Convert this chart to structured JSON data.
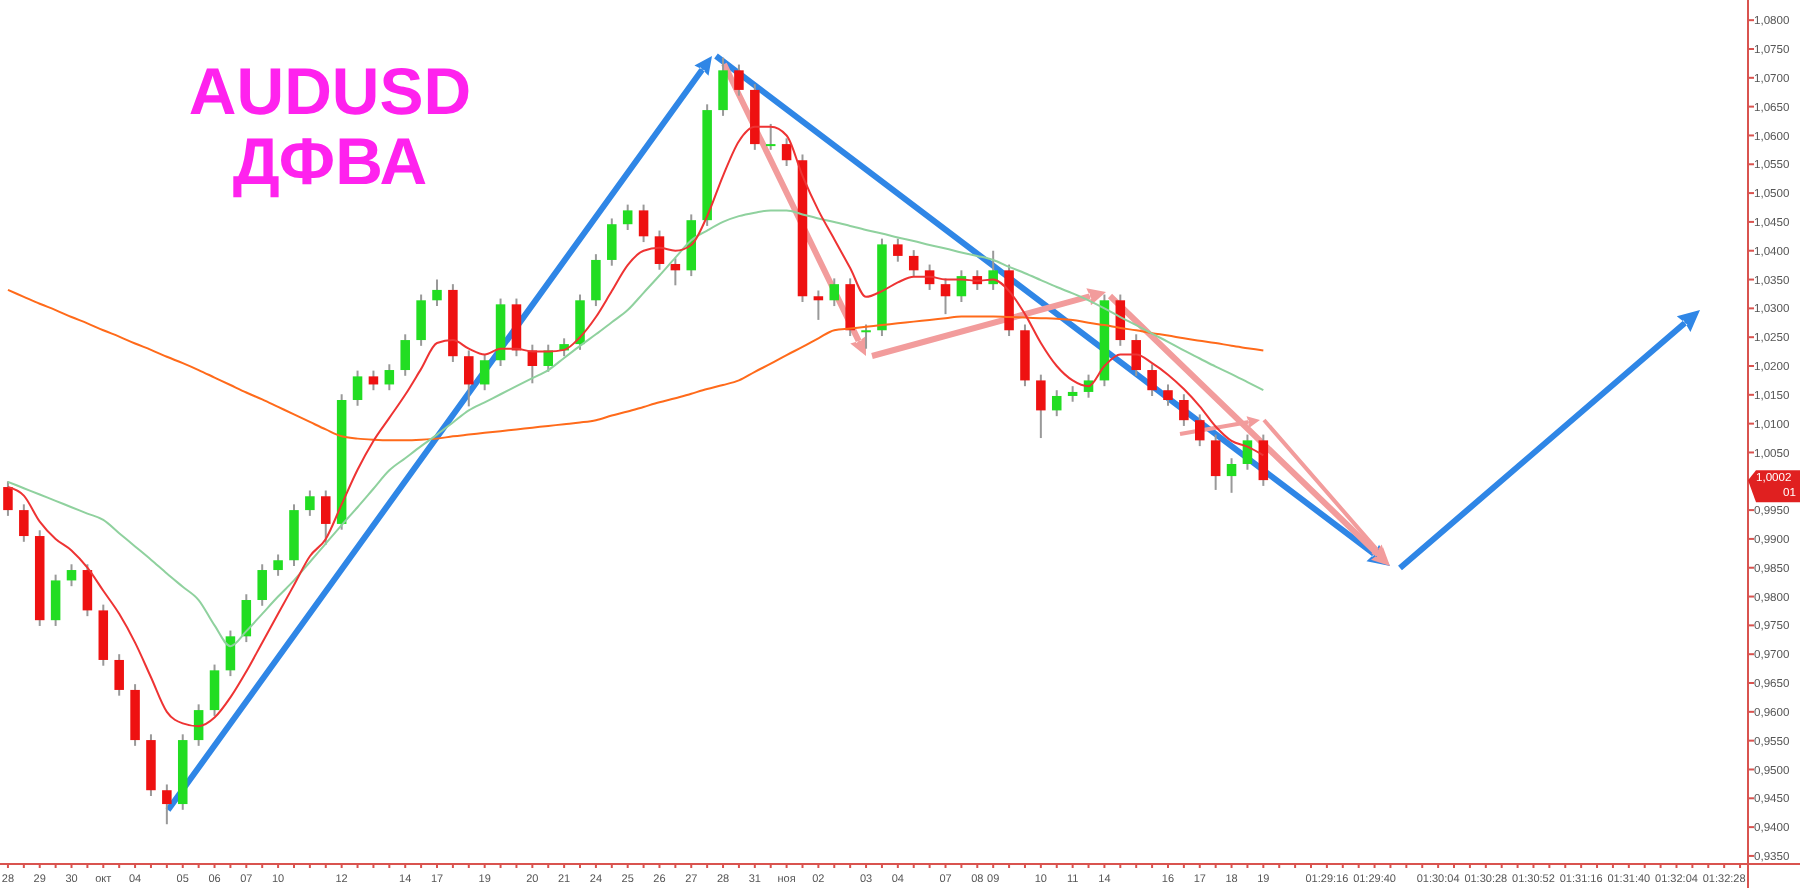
{
  "chart_data": {
    "type": "candlestick",
    "title": "AUDUSD",
    "subtitle": "ДФВА",
    "categories": [
      "28",
      null,
      "29",
      null,
      "30",
      null,
      "окт",
      null,
      "04",
      null,
      null,
      "05",
      null,
      "06",
      null,
      "07",
      null,
      "10",
      null,
      null,
      null,
      "12",
      null,
      null,
      null,
      "14",
      null,
      "17",
      null,
      null,
      "19",
      null,
      null,
      "20",
      null,
      "21",
      null,
      "24",
      null,
      "25",
      null,
      "26",
      null,
      "27",
      null,
      "28",
      null,
      "31",
      null,
      "ноя",
      null,
      "02",
      null,
      null,
      "03",
      null,
      "04",
      null,
      null,
      "07",
      null,
      "08",
      "09",
      null,
      null,
      "10",
      null,
      "11",
      null,
      "14",
      null,
      null,
      null,
      "16",
      null,
      "17",
      null,
      "18",
      null,
      "19",
      null,
      null,
      null,
      "01:29:16",
      null,
      null,
      "01:29:40",
      null,
      null,
      null,
      "01:30:04",
      null,
      null,
      "01:30:28",
      null,
      null,
      "01:30:52",
      null,
      null,
      "01:31:16",
      null,
      null,
      "01:31:40",
      null,
      null,
      "01:32:04",
      null,
      null,
      "01:32:28",
      null
    ],
    "ohlc": [
      [
        0.999,
        1.0,
        0.994,
        0.995
      ],
      [
        0.995,
        0.996,
        0.9895,
        0.9905
      ],
      [
        0.9905,
        0.9915,
        0.9749,
        0.9759
      ],
      [
        0.9759,
        0.9838,
        0.9749,
        0.9828
      ],
      [
        0.9828,
        0.9856,
        0.9818,
        0.9846
      ],
      [
        0.9846,
        0.9856,
        0.9766,
        0.9776
      ],
      [
        0.9776,
        0.9786,
        0.968,
        0.969
      ],
      [
        0.969,
        0.97,
        0.9628,
        0.9638
      ],
      [
        0.9638,
        0.9648,
        0.9541,
        0.9551
      ],
      [
        0.9551,
        0.9561,
        0.9454,
        0.9464
      ],
      [
        0.9464,
        0.9474,
        0.9405,
        0.944
      ],
      [
        0.944,
        0.9561,
        0.943,
        0.9551
      ],
      [
        0.9551,
        0.9613,
        0.9541,
        0.9603
      ],
      [
        0.9603,
        0.9682,
        0.9593,
        0.9672
      ],
      [
        0.9672,
        0.9741,
        0.9662,
        0.9731
      ],
      [
        0.9731,
        0.9804,
        0.9721,
        0.9794
      ],
      [
        0.9794,
        0.9856,
        0.9784,
        0.9846
      ],
      [
        0.9846,
        0.9873,
        0.9836,
        0.9863
      ],
      [
        0.9863,
        0.996,
        0.9853,
        0.995
      ],
      [
        0.995,
        0.9984,
        0.994,
        0.9974
      ],
      [
        0.9974,
        0.9984,
        0.989,
        0.9926
      ],
      [
        0.9926,
        1.0151,
        0.9916,
        1.0141
      ],
      [
        1.0141,
        1.0192,
        1.0131,
        1.0182
      ],
      [
        1.0182,
        1.0192,
        1.0158,
        1.0168
      ],
      [
        1.0168,
        1.0203,
        1.0158,
        1.0193
      ],
      [
        1.0193,
        1.0255,
        1.0183,
        1.0245
      ],
      [
        1.0245,
        1.0324,
        1.0235,
        1.0314
      ],
      [
        1.0314,
        1.035,
        1.0304,
        1.0332
      ],
      [
        1.0332,
        1.0342,
        1.0207,
        1.0217
      ],
      [
        1.0217,
        1.0227,
        1.013,
        1.0168
      ],
      [
        1.0168,
        1.022,
        1.0158,
        1.021
      ],
      [
        1.021,
        1.0317,
        1.02,
        1.0307
      ],
      [
        1.0307,
        1.0317,
        1.0217,
        1.0227
      ],
      [
        1.0227,
        1.0237,
        1.017,
        1.02
      ],
      [
        1.02,
        1.0237,
        1.019,
        1.0227
      ],
      [
        1.0227,
        1.0248,
        1.0217,
        1.0238
      ],
      [
        1.0238,
        1.0324,
        1.0228,
        1.0314
      ],
      [
        1.0314,
        1.0394,
        1.0304,
        1.0384
      ],
      [
        1.0384,
        1.0456,
        1.0374,
        1.0446
      ],
      [
        1.0446,
        1.048,
        1.0436,
        1.047
      ],
      [
        1.047,
        1.048,
        1.0415,
        1.0425
      ],
      [
        1.0425,
        1.0435,
        1.0367,
        1.0377
      ],
      [
        1.0377,
        1.0387,
        1.034,
        1.0366
      ],
      [
        1.0366,
        1.0463,
        1.0356,
        1.0453
      ],
      [
        1.0453,
        1.0654,
        1.0443,
        1.0644
      ],
      [
        1.0644,
        1.0735,
        1.0634,
        1.0713
      ],
      [
        1.0713,
        1.0723,
        1.0669,
        1.0679
      ],
      [
        1.0679,
        1.0689,
        1.0575,
        1.0585
      ],
      [
        1.0585,
        1.062,
        1.0575,
        1.0585
      ],
      [
        1.0585,
        1.0595,
        1.0547,
        1.0557
      ],
      [
        1.0557,
        1.0567,
        1.0311,
        1.0321
      ],
      [
        1.0321,
        1.0331,
        1.028,
        1.0314
      ],
      [
        1.0314,
        1.0352,
        1.0304,
        1.0342
      ],
      [
        1.0342,
        1.0352,
        1.0252,
        1.0262
      ],
      [
        1.0262,
        1.0272,
        1.023,
        1.0262
      ],
      [
        1.0262,
        1.0421,
        1.0252,
        1.0411
      ],
      [
        1.0411,
        1.0421,
        1.0381,
        1.0391
      ],
      [
        1.0391,
        1.0401,
        1.0356,
        1.0366
      ],
      [
        1.0366,
        1.0376,
        1.0332,
        1.0342
      ],
      [
        1.0342,
        1.0352,
        1.029,
        1.0321
      ],
      [
        1.0321,
        1.0366,
        1.0311,
        1.0356
      ],
      [
        1.0356,
        1.0366,
        1.0332,
        1.0342
      ],
      [
        1.0342,
        1.04,
        1.0332,
        1.0366
      ],
      [
        1.0366,
        1.0376,
        1.0252,
        1.0262
      ],
      [
        1.0262,
        1.0272,
        1.0165,
        1.0175
      ],
      [
        1.0175,
        1.0185,
        1.0075,
        1.0123
      ],
      [
        1.0123,
        1.0158,
        1.0113,
        1.0148
      ],
      [
        1.0148,
        1.0165,
        1.0138,
        1.0155
      ],
      [
        1.0155,
        1.0185,
        1.0145,
        1.0175
      ],
      [
        1.0175,
        1.0324,
        1.0165,
        1.0314
      ],
      [
        1.0314,
        1.0324,
        1.0235,
        1.0245
      ],
      [
        1.0245,
        1.0255,
        1.0183,
        1.0193
      ],
      [
        1.0193,
        1.0203,
        1.0148,
        1.0158
      ],
      [
        1.0158,
        1.0168,
        1.0131,
        1.0141
      ],
      [
        1.0141,
        1.0151,
        1.0096,
        1.0106
      ],
      [
        1.0106,
        1.0116,
        1.0061,
        1.0071
      ],
      [
        1.0071,
        1.0081,
        0.9985,
        1.0009
      ],
      [
        1.0009,
        1.004,
        0.998,
        1.003
      ],
      [
        1.003,
        1.0081,
        1.002,
        1.0071
      ],
      [
        1.0071,
        1.0081,
        0.9992,
        1.0002
      ],
      null,
      null,
      null,
      null,
      null,
      null,
      null,
      null,
      null,
      null,
      null,
      null,
      null,
      null,
      null,
      null,
      null,
      null,
      null,
      null,
      null,
      null,
      null,
      null,
      null,
      null,
      null,
      null,
      null,
      null
    ],
    "series": [
      {
        "type": "line",
        "color": "#ff6a1a",
        "values": [
          1.0332,
          1.032,
          1.0308,
          1.0297,
          1.0285,
          1.0274,
          1.0262,
          1.0251,
          1.0239,
          1.0228,
          1.0216,
          1.0205,
          1.0193,
          1.018,
          1.0167,
          1.0154,
          1.0142,
          1.0129,
          1.0116,
          1.0103,
          1.009,
          1.0078,
          1.0074,
          1.0072,
          1.0071,
          1.0071,
          1.0072,
          1.0074,
          1.0078,
          1.0081,
          1.0084,
          1.0087,
          1.009,
          1.0093,
          1.0096,
          1.0099,
          1.0102,
          1.0106,
          1.0114,
          1.0121,
          1.0129,
          1.0137,
          1.0144,
          1.0152,
          1.016,
          1.0167,
          1.0175,
          1.019,
          1.0204,
          1.0219,
          1.0233,
          1.0248,
          1.0262,
          1.0265,
          1.0268,
          1.0271,
          1.0274,
          1.0277,
          1.028,
          1.0283,
          1.0286,
          1.0286,
          1.0286,
          1.0285,
          1.0284,
          1.0283,
          1.0282,
          1.028,
          1.0275,
          1.0271,
          1.0266,
          1.0262,
          1.0257,
          1.0253,
          1.0248,
          1.0244,
          1.024,
          1.0235,
          1.0231,
          1.0227,
          null,
          null,
          null,
          null,
          null,
          null,
          null,
          null,
          null,
          null,
          null,
          null,
          null,
          null,
          null,
          null,
          null,
          null,
          null,
          null,
          null,
          null,
          null,
          null,
          null,
          null,
          null,
          null,
          null,
          null
        ]
      },
      {
        "type": "line",
        "color": "#8fd19e",
        "values": [
          0.9999,
          0.9988,
          0.9977,
          0.9966,
          0.9955,
          0.9944,
          0.9933,
          0.991,
          0.9887,
          0.9864,
          0.984,
          0.9817,
          0.9794,
          0.975,
          0.9714,
          0.974,
          0.977,
          0.98,
          0.9828,
          0.986,
          0.9892,
          0.9924,
          0.9955,
          0.9987,
          1.0019,
          1.004,
          1.0061,
          1.0081,
          1.0102,
          1.0123,
          1.0137,
          1.0151,
          1.0165,
          1.0179,
          1.0193,
          1.0214,
          1.0235,
          1.0255,
          1.0276,
          1.0297,
          1.0327,
          1.0357,
          1.0388,
          1.0418,
          1.0435,
          1.045,
          1.046,
          1.0466,
          1.047,
          1.047,
          1.0463,
          1.0456,
          1.045,
          1.0443,
          1.0436,
          1.043,
          1.0423,
          1.0417,
          1.041,
          1.0404,
          1.0397,
          1.0391,
          1.0384,
          1.0372,
          1.0361,
          1.0349,
          1.0337,
          1.0326,
          1.0314,
          1.03,
          1.0285,
          1.0271,
          1.0256,
          1.0242,
          1.0227,
          1.0213,
          1.0199,
          1.0186,
          1.0172,
          1.0158,
          null,
          null,
          null,
          null,
          null,
          null,
          null,
          null,
          null,
          null,
          null,
          null,
          null,
          null,
          null,
          null,
          null,
          null,
          null,
          null,
          null,
          null,
          null,
          null,
          null,
          null,
          null,
          null,
          null,
          null
        ]
      },
      {
        "type": "line",
        "color": "#ee3333",
        "values": [
          0.999,
          0.9975,
          0.993,
          0.99,
          0.988,
          0.985,
          0.981,
          0.977,
          0.972,
          0.966,
          0.96,
          0.958,
          0.9575,
          0.959,
          0.9625,
          0.967,
          0.972,
          0.977,
          0.982,
          0.987,
          0.99,
          0.996,
          1.002,
          1.007,
          1.011,
          1.015,
          1.0195,
          1.024,
          1.0245,
          1.023,
          1.022,
          1.023,
          1.023,
          1.0225,
          1.0225,
          1.0228,
          1.025,
          1.0285,
          1.033,
          1.0375,
          1.04,
          1.0405,
          1.04,
          1.041,
          1.046,
          1.053,
          1.059,
          1.0615,
          1.0615,
          1.06,
          1.053,
          1.047,
          1.042,
          1.037,
          1.032,
          1.033,
          1.0345,
          1.0355,
          1.0355,
          1.035,
          1.035,
          1.0348,
          1.035,
          1.033,
          1.029,
          1.024,
          1.02,
          1.0175,
          1.0165,
          1.02,
          1.022,
          1.022,
          1.0205,
          1.0185,
          1.016,
          1.013,
          1.0095,
          1.007,
          1.006,
          1.0045,
          null,
          null,
          null,
          null,
          null,
          null,
          null,
          null,
          null,
          null,
          null,
          null,
          null,
          null,
          null,
          null,
          null,
          null,
          null,
          null,
          null,
          null,
          null,
          null,
          null,
          null,
          null,
          null,
          null,
          null
        ]
      }
    ],
    "ylim": [
      0.9336,
      1.0835
    ],
    "yticks": [
      {
        "value": 0.935,
        "label": "0,9350"
      },
      {
        "value": 0.94,
        "label": "0,9400"
      },
      {
        "value": 0.945,
        "label": "0,9450"
      },
      {
        "value": 0.95,
        "label": "0,9500"
      },
      {
        "value": 0.955,
        "label": "0,9550"
      },
      {
        "value": 0.96,
        "label": "0,9600"
      },
      {
        "value": 0.965,
        "label": "0,9650"
      },
      {
        "value": 0.97,
        "label": "0,9700"
      },
      {
        "value": 0.975,
        "label": "0,9750"
      },
      {
        "value": 0.98,
        "label": "0,9800"
      },
      {
        "value": 0.985,
        "label": "0,9850"
      },
      {
        "value": 0.99,
        "label": "0,9900"
      },
      {
        "value": 0.995,
        "label": "0,9950"
      },
      {
        "value": 1.0,
        "label": null
      },
      {
        "value": 1.005,
        "label": "1,0050"
      },
      {
        "value": 1.01,
        "label": "1,0100"
      },
      {
        "value": 1.015,
        "label": "1,0150"
      },
      {
        "value": 1.02,
        "label": "1,0200"
      },
      {
        "value": 1.025,
        "label": "1,0250"
      },
      {
        "value": 1.03,
        "label": "1,0300"
      },
      {
        "value": 1.035,
        "label": "1,0350"
      },
      {
        "value": 1.04,
        "label": "1,0400"
      },
      {
        "value": 1.045,
        "label": "1,0450"
      },
      {
        "value": 1.05,
        "label": "1,0500"
      },
      {
        "value": 1.055,
        "label": "1,0550"
      },
      {
        "value": 1.06,
        "label": "1,0600"
      },
      {
        "value": 1.065,
        "label": "1,0650"
      },
      {
        "value": 1.07,
        "label": "1,0700"
      },
      {
        "value": 1.075,
        "label": "1,0750"
      },
      {
        "value": 1.08,
        "label": "1,0800"
      }
    ],
    "annotations": [
      "1,0002",
      "01"
    ],
    "grid": false
  }
}
